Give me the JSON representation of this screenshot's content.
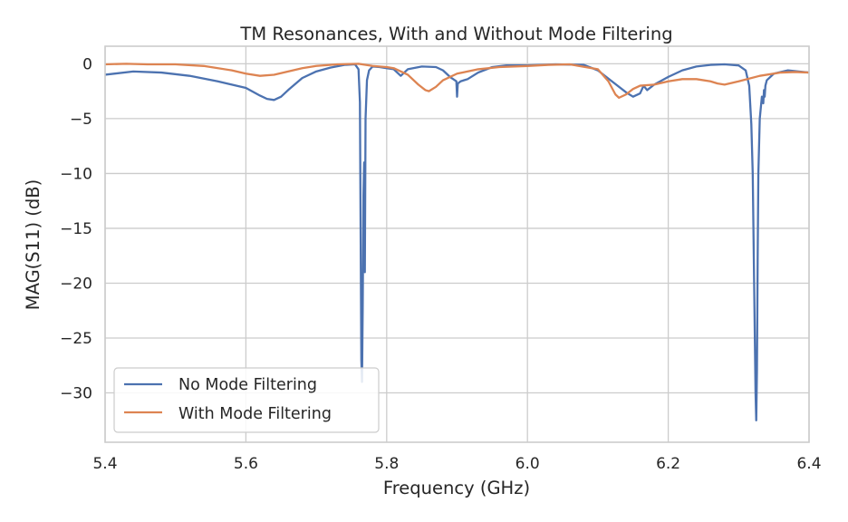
{
  "chart_data": {
    "type": "line",
    "title": "TM Resonances, With and Without Mode Filtering",
    "xlabel": "Frequency (GHz)",
    "ylabel": "MAG(S11) (dB)",
    "xlim": [
      5.4,
      6.4
    ],
    "ylim": [
      -34.5,
      1.6
    ],
    "xticks": [
      5.4,
      5.6,
      5.8,
      6.0,
      6.2,
      6.4
    ],
    "xtick_labels": [
      "5.4",
      "5.6",
      "5.8",
      "6.0",
      "6.2",
      "6.4"
    ],
    "yticks": [
      0,
      -5,
      -10,
      -15,
      -20,
      -25,
      -30
    ],
    "ytick_labels": [
      "0",
      "−5",
      "−10",
      "−15",
      "−20",
      "−25",
      "−30"
    ],
    "grid": true,
    "legend_position": "lower-left",
    "series": [
      {
        "name": "No Mode Filtering",
        "color": "#4c72b0",
        "x": [
          5.4,
          5.44,
          5.48,
          5.52,
          5.56,
          5.6,
          5.62,
          5.63,
          5.64,
          5.65,
          5.66,
          5.68,
          5.7,
          5.72,
          5.74,
          5.755,
          5.76,
          5.762,
          5.764,
          5.765,
          5.766,
          5.767,
          5.768,
          5.769,
          5.77,
          5.772,
          5.775,
          5.78,
          5.79,
          5.8,
          5.81,
          5.815,
          5.82,
          5.83,
          5.85,
          5.87,
          5.88,
          5.89,
          5.899,
          5.9,
          5.901,
          5.905,
          5.91,
          5.915,
          5.93,
          5.95,
          5.97,
          6.0,
          6.04,
          6.08,
          6.1,
          6.12,
          6.14,
          6.15,
          6.16,
          6.165,
          6.17,
          6.18,
          6.2,
          6.22,
          6.24,
          6.26,
          6.28,
          6.3,
          6.31,
          6.315,
          6.318,
          6.32,
          6.322,
          6.324,
          6.325,
          6.326,
          6.327,
          6.328,
          6.33,
          6.333,
          6.335,
          6.336,
          6.337,
          6.338,
          6.34,
          6.35,
          6.37,
          6.4
        ],
        "y": [
          -1.0,
          -0.7,
          -0.8,
          -1.1,
          -1.6,
          -2.2,
          -2.9,
          -3.2,
          -3.3,
          -3.0,
          -2.4,
          -1.3,
          -0.7,
          -0.35,
          -0.1,
          -0.05,
          -0.5,
          -3.5,
          -27.0,
          -29.0,
          -22.0,
          -12.0,
          -9.0,
          -19.0,
          -5.0,
          -1.5,
          -0.6,
          -0.25,
          -0.3,
          -0.4,
          -0.5,
          -0.8,
          -1.1,
          -0.5,
          -0.25,
          -0.3,
          -0.6,
          -1.2,
          -1.6,
          -3.0,
          -1.8,
          -1.6,
          -1.5,
          -1.4,
          -0.8,
          -0.3,
          -0.15,
          -0.15,
          -0.05,
          -0.1,
          -0.6,
          -1.6,
          -2.6,
          -3.0,
          -2.7,
          -2.0,
          -2.4,
          -1.9,
          -1.2,
          -0.6,
          -0.25,
          -0.1,
          -0.05,
          -0.15,
          -0.6,
          -2.0,
          -5.5,
          -10.0,
          -20.0,
          -30.0,
          -32.5,
          -28.0,
          -18.0,
          -10.0,
          -5.0,
          -3.0,
          -3.6,
          -2.4,
          -3.0,
          -2.0,
          -1.5,
          -0.9,
          -0.6,
          -0.8
        ]
      },
      {
        "name": "With Mode Filtering",
        "color": "#dd8452",
        "x": [
          5.4,
          5.43,
          5.46,
          5.5,
          5.54,
          5.58,
          5.6,
          5.62,
          5.64,
          5.66,
          5.68,
          5.7,
          5.73,
          5.76,
          5.78,
          5.8,
          5.81,
          5.83,
          5.845,
          5.855,
          5.86,
          5.87,
          5.88,
          5.9,
          5.93,
          5.96,
          6.0,
          6.03,
          6.06,
          6.1,
          6.115,
          6.125,
          6.13,
          6.14,
          6.15,
          6.16,
          6.18,
          6.2,
          6.22,
          6.24,
          6.26,
          6.27,
          6.28,
          6.3,
          6.33,
          6.36,
          6.38,
          6.4
        ],
        "y": [
          -0.05,
          0.0,
          -0.05,
          -0.05,
          -0.2,
          -0.6,
          -0.9,
          -1.1,
          -1.0,
          -0.7,
          -0.4,
          -0.2,
          -0.05,
          0.0,
          -0.2,
          -0.3,
          -0.4,
          -1.0,
          -1.9,
          -2.4,
          -2.5,
          -2.1,
          -1.5,
          -0.9,
          -0.5,
          -0.3,
          -0.2,
          -0.1,
          -0.05,
          -0.5,
          -1.6,
          -2.8,
          -3.1,
          -2.8,
          -2.3,
          -2.0,
          -1.9,
          -1.6,
          -1.4,
          -1.4,
          -1.6,
          -1.8,
          -1.9,
          -1.6,
          -1.1,
          -0.8,
          -0.75,
          -0.8
        ]
      }
    ]
  }
}
